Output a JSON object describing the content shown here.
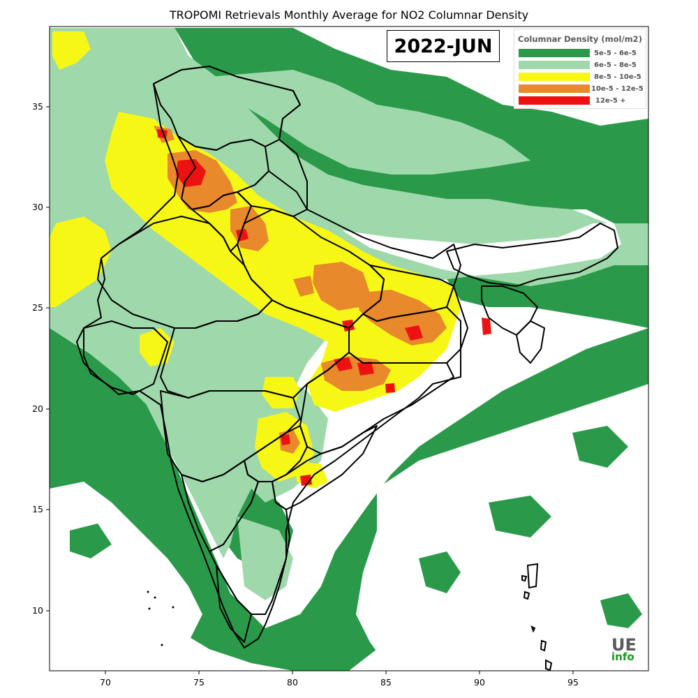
{
  "title": "TROPOMI Retrievals Monthly Average for NO2 Columnar Density",
  "date_label": "2022-JUN",
  "legend": {
    "title": "Columnar Density (mol/m2)",
    "items": [
      {
        "label": "5e-5 - 6e-5",
        "color": "#2a9a4a"
      },
      {
        "label": "6e-5 - 8e-5",
        "color": "#9fd8ab"
      },
      {
        "label": "8e-5 - 10e-5",
        "color": "#f7f716"
      },
      {
        "label": "10e-5 - 12e-5",
        "color": "#e8892b"
      },
      {
        "label": "12e-5 +",
        "color": "#ee1111"
      }
    ]
  },
  "axes": {
    "x_ticks": [
      "70",
      "75",
      "80",
      "85",
      "90",
      "95"
    ],
    "y_ticks": [
      "35",
      "30",
      "25",
      "20",
      "15",
      "10"
    ],
    "x_range_deg": [
      67,
      99
    ],
    "y_range_deg": [
      7,
      39
    ]
  },
  "logo": {
    "main": "UE",
    "sub": "info"
  }
}
